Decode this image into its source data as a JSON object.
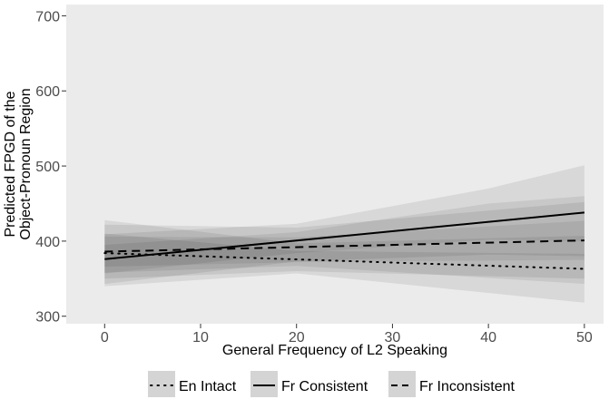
{
  "chart_data": {
    "type": "line",
    "xlabel": "General Frequency of L2 Speaking",
    "ylabel_lines": [
      "Predicted FPGD of the",
      "Object-Pronoun Region"
    ],
    "xlim": [
      -4,
      52
    ],
    "ylim": [
      290,
      715
    ],
    "x_ticks": [
      0,
      10,
      20,
      30,
      40,
      50
    ],
    "y_ticks": [
      300,
      400,
      500,
      600,
      700
    ],
    "grid": false,
    "panel_background": "#ebebeb",
    "legend_position": "bottom",
    "series": [
      {
        "name": "En Intact",
        "linestyle": "dotted",
        "x": [
          0,
          50
        ],
        "y": [
          384,
          363
        ],
        "ci_outer": {
          "x": [
            0,
            20,
            50
          ],
          "lower": [
            340,
            357,
            318
          ],
          "upper": [
            428,
            397,
            407
          ]
        },
        "ci_inner": {
          "x": [
            0,
            20,
            50
          ],
          "lower": [
            358,
            367,
            343
          ],
          "upper": [
            410,
            387,
            383
          ]
        }
      },
      {
        "name": "Fr Consistent",
        "linestyle": "solid",
        "x": [
          0,
          50
        ],
        "y": [
          376,
          438
        ],
        "ci_outer": {
          "x": [
            0,
            20,
            40,
            50
          ],
          "lower": [
            343,
            373,
            382,
            380
          ],
          "upper": [
            409,
            423,
            470,
            501
          ]
        },
        "ci_inner": {
          "x": [
            0,
            20,
            40,
            50
          ],
          "lower": [
            357,
            384,
            402,
            400
          ],
          "upper": [
            395,
            412,
            450,
            460
          ]
        }
      },
      {
        "name": "Fr Inconsistent",
        "linestyle": "dashed",
        "x": [
          0,
          50
        ],
        "y": [
          386,
          401
        ],
        "ci_outer": {
          "x": [
            0,
            20,
            50
          ],
          "lower": [
            350,
            360,
            350
          ],
          "upper": [
            422,
            418,
            452
          ]
        },
        "ci_inner": {
          "x": [
            0,
            20,
            50
          ],
          "lower": [
            366,
            372,
            375
          ],
          "upper": [
            406,
            405,
            427
          ]
        }
      }
    ]
  }
}
